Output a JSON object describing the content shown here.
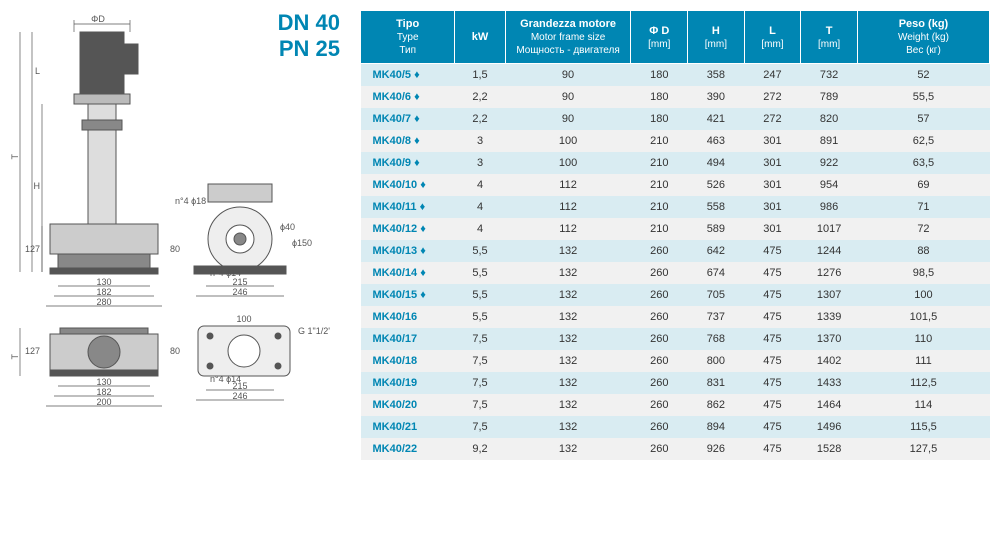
{
  "heading": {
    "line1": "DN 40",
    "line2": "PN 25"
  },
  "colors": {
    "accent": "#0086b3",
    "header_bg": "#0086b3",
    "header_fg": "#ffffff",
    "row_odd": "#d9ecf2",
    "row_even": "#f1f1f1",
    "drawing_stroke": "#555555"
  },
  "drawing_labels": {
    "phiD": "ΦD",
    "L": "L",
    "T": "T",
    "H": "H",
    "d127": "127",
    "d80": "80",
    "d40": "ϕ40",
    "d150": "ϕ150",
    "d130": "130",
    "d182": "182",
    "d280": "280",
    "d215": "215",
    "d246": "246",
    "d200": "200",
    "d100": "100",
    "n4_18": "n°4 ϕ18",
    "n4_14": "n°4 ϕ14",
    "g112": "G 1\"1/2'"
  },
  "table": {
    "columns": [
      {
        "l1": "Tipo",
        "l2": "Type",
        "l3": "Тип"
      },
      {
        "l1": "kW"
      },
      {
        "l1": "Grandezza motore",
        "l2": "Motor frame size",
        "l3": "Мощность - двигателя"
      },
      {
        "l1": "Φ D",
        "l2": "[mm]"
      },
      {
        "l1": "H",
        "l2": "[mm]"
      },
      {
        "l1": "L",
        "l2": "[mm]"
      },
      {
        "l1": "T",
        "l2": "[mm]"
      },
      {
        "l1": "Peso (kg)",
        "l2": "Weight (kg)",
        "l3": "Вес (кг)"
      }
    ],
    "rows": [
      [
        "MK40/5 ♦",
        "1,5",
        "90",
        "180",
        "358",
        "247",
        "732",
        "52"
      ],
      [
        "MK40/6 ♦",
        "2,2",
        "90",
        "180",
        "390",
        "272",
        "789",
        "55,5"
      ],
      [
        "MK40/7 ♦",
        "2,2",
        "90",
        "180",
        "421",
        "272",
        "820",
        "57"
      ],
      [
        "MK40/8 ♦",
        "3",
        "100",
        "210",
        "463",
        "301",
        "891",
        "62,5"
      ],
      [
        "MK40/9 ♦",
        "3",
        "100",
        "210",
        "494",
        "301",
        "922",
        "63,5"
      ],
      [
        "MK40/10 ♦",
        "4",
        "112",
        "210",
        "526",
        "301",
        "954",
        "69"
      ],
      [
        "MK40/11 ♦",
        "4",
        "112",
        "210",
        "558",
        "301",
        "986",
        "71"
      ],
      [
        "MK40/12 ♦",
        "4",
        "112",
        "210",
        "589",
        "301",
        "1017",
        "72"
      ],
      [
        "MK40/13 ♦",
        "5,5",
        "132",
        "260",
        "642",
        "475",
        "1244",
        "88"
      ],
      [
        "MK40/14 ♦",
        "5,5",
        "132",
        "260",
        "674",
        "475",
        "1276",
        "98,5"
      ],
      [
        "MK40/15 ♦",
        "5,5",
        "132",
        "260",
        "705",
        "475",
        "1307",
        "100"
      ],
      [
        "MK40/16",
        "5,5",
        "132",
        "260",
        "737",
        "475",
        "1339",
        "101,5"
      ],
      [
        "MK40/17",
        "7,5",
        "132",
        "260",
        "768",
        "475",
        "1370",
        "110"
      ],
      [
        "MK40/18",
        "7,5",
        "132",
        "260",
        "800",
        "475",
        "1402",
        "111"
      ],
      [
        "MK40/19",
        "7,5",
        "132",
        "260",
        "831",
        "475",
        "1433",
        "112,5"
      ],
      [
        "MK40/20",
        "7,5",
        "132",
        "260",
        "862",
        "475",
        "1464",
        "114"
      ],
      [
        "MK40/21",
        "7,5",
        "132",
        "260",
        "894",
        "475",
        "1496",
        "115,5"
      ],
      [
        "MK40/22",
        "9,2",
        "132",
        "260",
        "926",
        "475",
        "1528",
        "127,5"
      ]
    ],
    "col_widths": [
      "15%",
      "8%",
      "20%",
      "9%",
      "9%",
      "9%",
      "9%",
      "21%"
    ]
  }
}
